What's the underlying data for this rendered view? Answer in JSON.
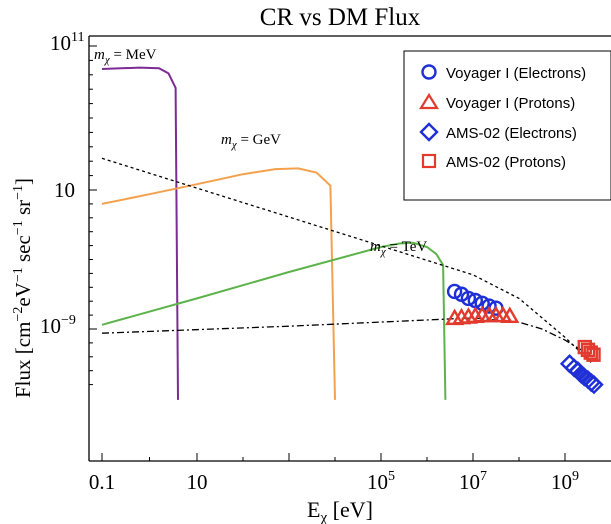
{
  "chart_data": {
    "type": "line",
    "title": "CR vs DM Flux",
    "xlabel": "Eχ [eV]",
    "ylabel": "Flux [cm⁻²eV⁻¹ sec⁻¹ sr⁻¹]",
    "xscale": "log",
    "yscale": "log",
    "xlim_log10": [
      -1,
      9.6
    ],
    "ylim_log10": [
      -14.1,
      11
    ],
    "x_tick_labels": [
      {
        "label": "0.1",
        "sup": "",
        "log10": -1
      },
      {
        "label": "10",
        "sup": "",
        "log10": 1
      },
      {
        "label": "10",
        "sup": "5",
        "log10": 5
      },
      {
        "label": "10",
        "sup": "7",
        "log10": 7
      },
      {
        "label": "10",
        "sup": "9",
        "log10": 9
      }
    ],
    "y_tick_labels": [
      {
        "label": "10",
        "sup": "11",
        "log10": 11
      },
      {
        "label": "10",
        "sup": "",
        "log10": 1
      },
      {
        "label": "10",
        "sup": "−9",
        "log10": -9
      }
    ],
    "grid": false,
    "legend_position": "top-right",
    "annotations": [
      {
        "label": "mχ = MeV",
        "base": "m",
        "sub": "χ",
        "rest": " = MeV"
      },
      {
        "label": "mχ = GeV",
        "base": "m",
        "sub": "χ",
        "rest": " = GeV"
      },
      {
        "label": "mχ = TeV",
        "base": "m",
        "sub": "χ",
        "rest": " = TeV"
      }
    ],
    "series": [
      {
        "kind": "dm",
        "color": "#7b2b93",
        "x_log10": [
          -1,
          -0.6,
          -0.2,
          0.2,
          0.4,
          0.55,
          0.6
        ],
        "y_log10": [
          9.4,
          9.45,
          9.5,
          9.45,
          9.1,
          8.1,
          -14.1
        ]
      },
      {
        "kind": "dm",
        "color": "#f4a14e",
        "x_log10": [
          -1,
          0,
          1,
          2,
          2.7,
          3.2,
          3.6,
          3.9,
          4.0
        ],
        "y_log10": [
          0,
          0.7,
          1.4,
          2.1,
          2.45,
          2.5,
          2.2,
          1.3,
          -14.1
        ]
      },
      {
        "kind": "dm",
        "color": "#5cb34a",
        "x_log10": [
          -1,
          1,
          3,
          5,
          5.4,
          5.7,
          6.0,
          6.2,
          6.35,
          6.4
        ],
        "y_log10": [
          -8.7,
          -6.8,
          -4.9,
          -3.1,
          -2.85,
          -2.8,
          -3.1,
          -3.6,
          -4.4,
          -14.1
        ]
      },
      {
        "kind": "cr_model",
        "style": "dotted",
        "color": "#000000",
        "x_log10": [
          -1,
          7,
          8,
          9,
          9.6
        ],
        "y_log10": [
          3.2,
          -5.1,
          -6.8,
          -9.6,
          -11.5
        ]
      },
      {
        "kind": "cr_model",
        "style": "dashdot",
        "color": "#000000",
        "x_log10": [
          -1,
          3,
          7,
          8,
          8.5,
          9,
          9.6
        ],
        "y_log10": [
          -9.3,
          -8.8,
          -8.2,
          -8.5,
          -9.0,
          -9.8,
          -11.0
        ]
      },
      {
        "name": "Voyager I (Electrons)",
        "marker": "circle",
        "color": "#1f2fd6",
        "x_log10": [
          6.6,
          6.75,
          6.9,
          7.05,
          7.2,
          7.35,
          7.5
        ],
        "y_log10": [
          -6.3,
          -6.5,
          -6.8,
          -6.95,
          -7.15,
          -7.35,
          -7.5
        ]
      },
      {
        "name": "Voyager I (Protons)",
        "marker": "triangle",
        "color": "#e23b2e",
        "x_log10": [
          6.6,
          6.75,
          6.9,
          7.05,
          7.2,
          7.35,
          7.5,
          7.65,
          7.8
        ],
        "y_log10": [
          -8.2,
          -8.15,
          -8.1,
          -8.05,
          -8.0,
          -8.0,
          -8.0,
          -8.0,
          -8.05
        ]
      },
      {
        "name": "AMS-02 (Electrons)",
        "marker": "diamond",
        "color": "#1f2fd6",
        "x_log10": [
          9.1,
          9.2,
          9.28,
          9.35,
          9.42,
          9.5,
          9.57,
          9.63
        ],
        "y_log10": [
          -11.5,
          -11.8,
          -12.0,
          -12.25,
          -12.45,
          -12.65,
          -12.85,
          -13.0
        ]
      },
      {
        "name": "AMS-02 (Protons)",
        "marker": "square",
        "color": "#e23b2e",
        "x_log10": [
          9.43,
          9.5,
          9.56,
          9.62
        ],
        "y_log10": [
          -10.3,
          -10.5,
          -10.7,
          -10.85
        ]
      }
    ]
  }
}
